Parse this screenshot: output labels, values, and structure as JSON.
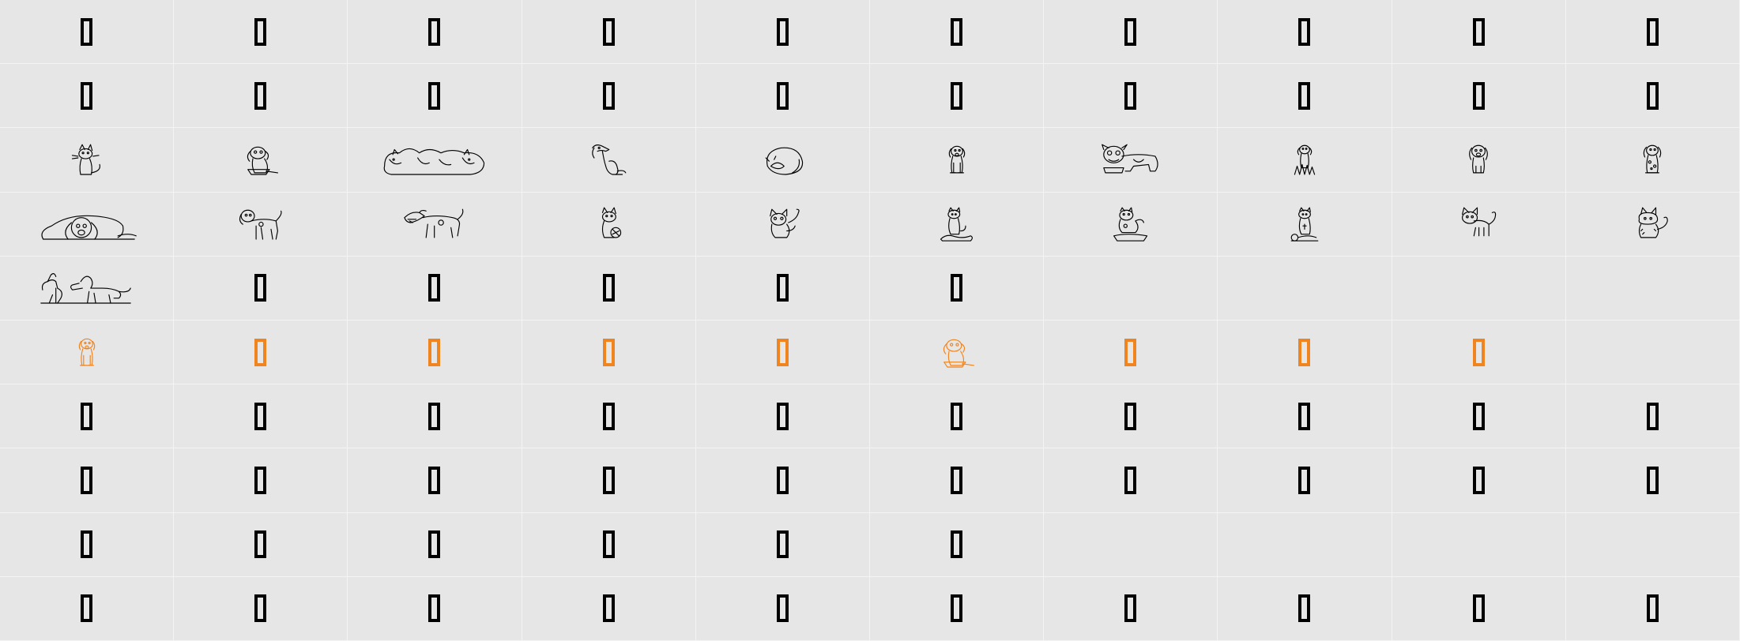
{
  "colors": {
    "background": "#e6e6e6",
    "grid_line": "#f4f4f4",
    "glyph": "#000000",
    "highlight": "#f0841e"
  },
  "rows": [
    [
      "box",
      "box",
      "box",
      "box",
      "box",
      "box",
      "box",
      "box",
      "box",
      "box"
    ],
    [
      "box",
      "box",
      "box",
      "box",
      "box",
      "box",
      "box",
      "box",
      "box",
      "box"
    ],
    [
      "cat-sitting-icon",
      "dog-with-bowl-icon",
      "cats-sleeping-row-icon",
      "dog-sitting-side-icon",
      "cat-curled-sleeping-icon",
      "puppy-sitting-icon",
      "bulldog-with-bowl-icon",
      "puppy-in-grass-icon",
      "puppy-sitting-front-icon",
      "puppy-spotted-icon"
    ],
    [
      "dog-lying-big-ears-icon",
      "dog-walking-icon",
      "dog-barking-icon",
      "cat-with-ball-icon",
      "kitten-playing-icon",
      "cat-grooming-icon",
      "cat-on-mat-icon",
      "cat-with-yarn-icon",
      "kitten-standing-icon",
      "kitten-fluffy-icon"
    ],
    [
      "dachshund-dogs-icon",
      "box",
      "box",
      "box",
      "box",
      "box",
      "empty",
      "empty",
      "empty",
      "empty"
    ],
    [
      "puppy-sitting-orange-icon",
      "box-orange",
      "box-orange",
      "box-orange",
      "box-orange",
      "dog-with-bowl-orange-icon",
      "box-orange",
      "box-orange",
      "box-orange",
      "empty"
    ],
    [
      "box",
      "box",
      "box",
      "box",
      "box",
      "box",
      "box",
      "box",
      "box",
      "box"
    ],
    [
      "box",
      "box",
      "box",
      "box",
      "box",
      "box",
      "box",
      "box",
      "box",
      "box"
    ],
    [
      "box",
      "box",
      "box",
      "box",
      "box",
      "box",
      "empty",
      "empty",
      "empty",
      "empty"
    ],
    [
      "box",
      "box",
      "box",
      "box",
      "box",
      "box",
      "box",
      "box",
      "box",
      "box"
    ]
  ]
}
